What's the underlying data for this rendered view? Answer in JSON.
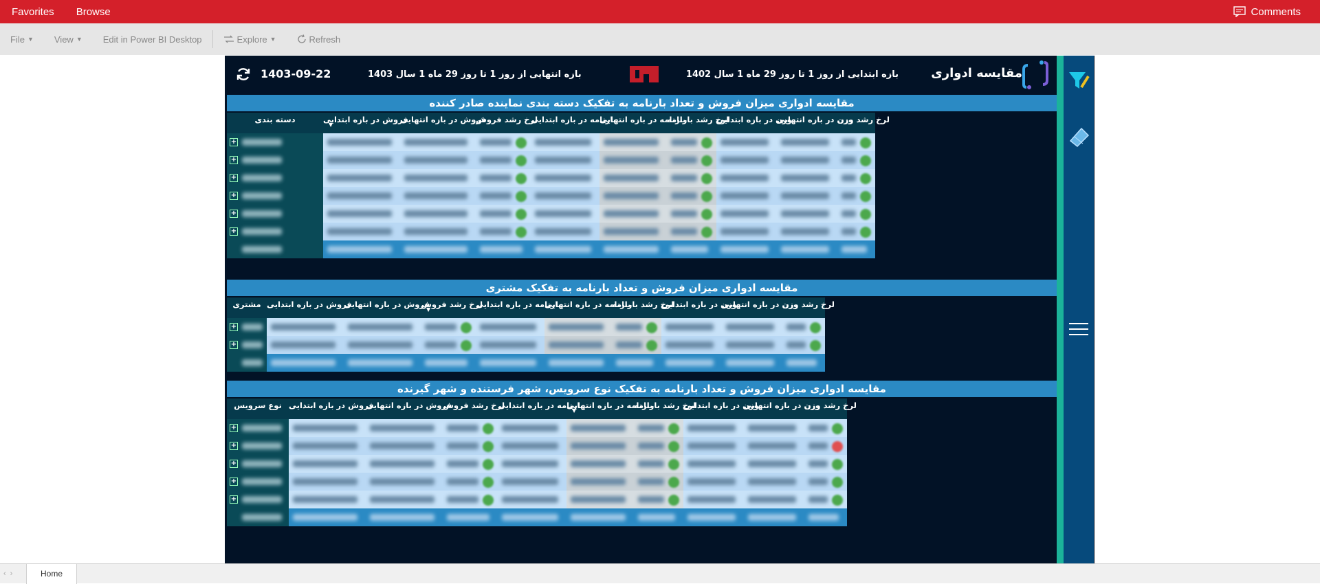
{
  "topbar": {
    "favorites": "Favorites",
    "browse": "Browse",
    "comments": "Comments"
  },
  "toolbar": {
    "file": "File",
    "view": "View",
    "edit": "Edit in Power BI Desktop",
    "explore": "Explore",
    "refresh": "Refresh"
  },
  "report": {
    "title": "مقایسه ادواری",
    "start_range": "بازه ابتدایی از روز 1 تا روز 29 ماه 1 سال 1402",
    "end_range": "بازه انتهایی از روز 1 تا روز 29 ماه 1 سال 1403",
    "date": "1403-09-22"
  },
  "sections": [
    {
      "title": "مقایسه ادواری میزان فروش و تعداد بارنامه به تفکیک دسته بندی نماینده صادر کننده",
      "headers": [
        "لرخ رشد وزن",
        "وزن در بازه انتهایی",
        "وزن در بازه ابتدایی",
        "لرخ رشد بارنامه",
        "بارنامه در بازه انتهایی",
        "بارنامه در بازه ابتدایی",
        "لرخ رشد فروش",
        "فروش در بازه انتهایی",
        "فروش در بازه ابتدایی",
        "دسته بندی"
      ],
      "sorted_col": 8
    },
    {
      "title": "مقایسه ادواری میزان فروش و تعداد بارنامه به تفکیک مشتری",
      "headers": [
        "لرخ رشد وزن",
        "وزن در بازه انتهایی",
        "وزن در بازه ابتدایی",
        "لرخ رشد بارنامه",
        "بارنامه در بازه انتهایی",
        "بارنامه در بازه ابتدایی",
        "لرخ رشد فروش",
        "فروش در بازه انتهایی",
        "فروش در بازه ابتدایی",
        "مشتری"
      ],
      "sorted_col": 6
    },
    {
      "title": "مقایسه ادواری میزان فروش و تعداد بارنامه به تفکیک نوع سرویس، شهر فرستنده و شهر گیرنده",
      "headers": [
        "لرخ رشد وزن",
        "وزن در بازه انتهایی",
        "وزن در بازه ابتدایی",
        "لرخ رشد بارنامه",
        "بارنامه در بازه انتهایی",
        "بارنامه در بازه ابتدایی",
        "لرخ رشد فروش",
        "فروش در بازه انتهایی",
        "فروش در بازه ابتدایی",
        "نوع سرویس"
      ],
      "sorted_col": 4
    }
  ],
  "bottom": {
    "tab": "Home"
  },
  "colors": {
    "topbar": "#d4202a",
    "report_bg": "#021226",
    "section_title": "#2b8ac4",
    "sidebar": "#064a7c",
    "accent": "#1bb39a"
  }
}
